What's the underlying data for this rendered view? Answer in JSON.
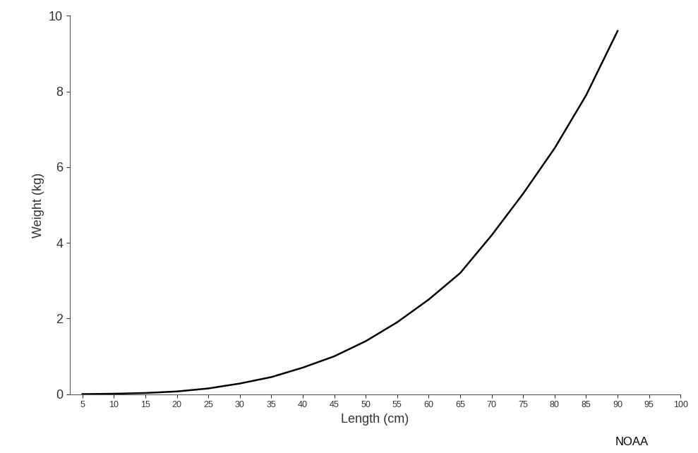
{
  "chart_data": {
    "type": "line",
    "x_label": "Length (cm)",
    "y_label": "Weight (kg)",
    "annotations": [
      "NOAA"
    ],
    "x": [
      5,
      10,
      15,
      20,
      25,
      30,
      35,
      40,
      45,
      50,
      55,
      60,
      65,
      70,
      75,
      80,
      85,
      90
    ],
    "values": [
      0.0,
      0.01,
      0.03,
      0.07,
      0.15,
      0.28,
      0.45,
      0.7,
      1.0,
      1.4,
      1.9,
      2.5,
      3.2,
      4.2,
      5.3,
      6.5,
      7.9,
      9.6
    ],
    "color": "#000000",
    "line_style": "solid",
    "xlim": [
      3,
      100
    ],
    "xticks": [
      5,
      10,
      15,
      20,
      25,
      30,
      35,
      40,
      45,
      50,
      55,
      60,
      65,
      70,
      75,
      80,
      85,
      90,
      95,
      100
    ],
    "ylim": [
      0,
      10
    ],
    "yticks": [
      0,
      2,
      4,
      6,
      8,
      10
    ],
    "grid": false
  }
}
